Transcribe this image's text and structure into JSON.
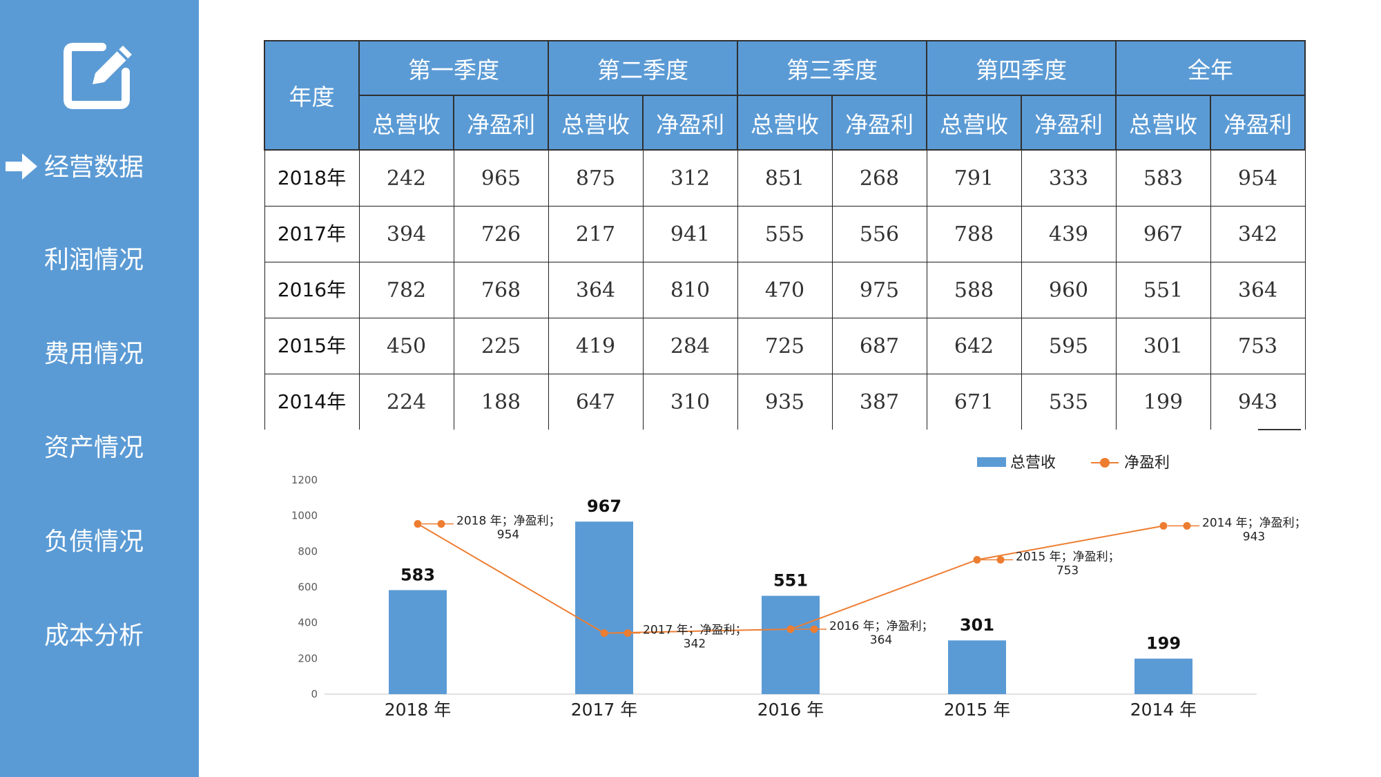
{
  "sidebar": {
    "items": [
      {
        "label": "经营数据",
        "active": true
      },
      {
        "label": "利润情况"
      },
      {
        "label": "费用情况"
      },
      {
        "label": "资产情况"
      },
      {
        "label": "负债情况"
      },
      {
        "label": "成本分析"
      }
    ],
    "icons": {
      "top": "edit-icon",
      "active_marker": "arrow-right-icon"
    },
    "bg_color": "#5B9BD5"
  },
  "table": {
    "year_header": "年度",
    "groups": [
      "第一季度",
      "第二季度",
      "第三季度",
      "第四季度",
      "全年"
    ],
    "sub_headers": [
      "总营收",
      "净盈利"
    ],
    "rows": [
      {
        "year": "2018年",
        "values": [
          "242",
          "965",
          "875",
          "312",
          "851",
          "268",
          "791",
          "333",
          "583",
          "954"
        ]
      },
      {
        "year": "2017年",
        "values": [
          "394",
          "726",
          "217",
          "941",
          "555",
          "556",
          "788",
          "439",
          "967",
          "342"
        ]
      },
      {
        "year": "2016年",
        "values": [
          "782",
          "768",
          "364",
          "810",
          "470",
          "975",
          "588",
          "960",
          "551",
          "364"
        ]
      },
      {
        "year": "2015年",
        "values": [
          "450",
          "225",
          "419",
          "284",
          "725",
          "687",
          "642",
          "595",
          "301",
          "753"
        ]
      },
      {
        "year": "2014年",
        "values": [
          "224",
          "188",
          "647",
          "310",
          "935",
          "387",
          "671",
          "535",
          "199",
          "943"
        ]
      }
    ]
  },
  "chart_data": {
    "type": "bar",
    "categories": [
      "2018 年",
      "2017 年",
      "2016 年",
      "2015 年",
      "2014 年"
    ],
    "series": [
      {
        "name": "总营收",
        "type": "bar",
        "color": "#5B9BD5",
        "values": [
          583,
          967,
          551,
          301,
          199
        ]
      },
      {
        "name": "净盈利",
        "type": "line",
        "color": "#ED7D31",
        "values": [
          954,
          342,
          364,
          753,
          943
        ]
      }
    ],
    "line_labels": [
      {
        "line1": "2018 年；净盈利；",
        "line2": "954"
      },
      {
        "line1": "2017 年；净盈利；",
        "line2": "342"
      },
      {
        "line1": "2016 年；净盈利；",
        "line2": "364"
      },
      {
        "line1": "2015 年；净盈利；",
        "line2": "753"
      },
      {
        "line1": "2014 年；净盈利；",
        "line2": "943"
      }
    ],
    "ylim": [
      0,
      1200
    ],
    "yticks": [
      0,
      200,
      400,
      600,
      800,
      1000,
      1200
    ],
    "legend_position": "top-right",
    "grid": false
  }
}
